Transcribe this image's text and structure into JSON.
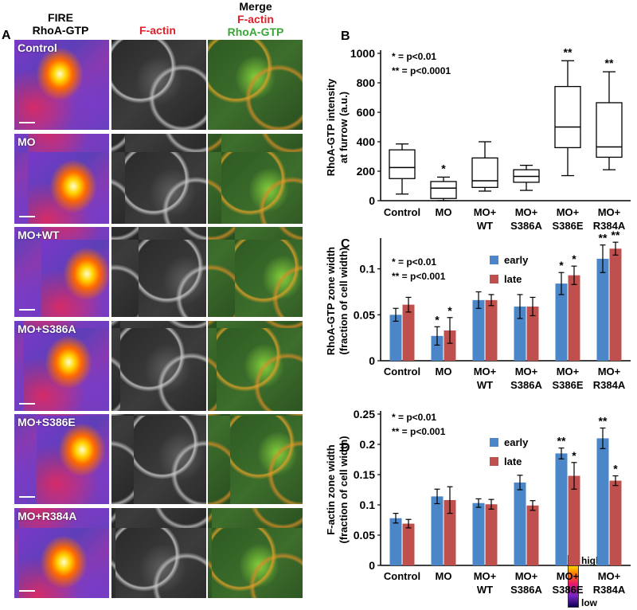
{
  "panel_a": {
    "letter": "A",
    "headers": {
      "fire_line1": "FIRE",
      "fire_line2": "RhoA-GTP",
      "factin": "F-actin",
      "merge_line1": "Merge",
      "merge_line2": "F-actin",
      "merge_line3": "RhoA-GTP"
    },
    "rows": [
      "Control",
      "MO",
      "MO+WT",
      "MO+S386A",
      "MO+S386E",
      "MO+R384A"
    ],
    "colorbar": {
      "high": "high",
      "low": "low"
    },
    "colors": {
      "factin_header": "#e0202a",
      "rhoa_header": "#3aa63a"
    }
  },
  "chart_data": [
    {
      "panel": "B",
      "type": "box",
      "ylabel_line1": "RhoA-GTP intensity",
      "ylabel_line2": "at furrow (a.u.)",
      "ylim": [
        0,
        1000
      ],
      "yticks": [
        "0",
        "200",
        "400",
        "600",
        "800",
        "1000"
      ],
      "categories": [
        {
          "line1": "Control",
          "line2": "",
          "min": 45,
          "q1": 150,
          "median": 225,
          "q3": 345,
          "max": 385,
          "sig": ""
        },
        {
          "line1": "MO",
          "line2": "",
          "min": 0,
          "q1": 15,
          "median": 85,
          "q3": 130,
          "max": 160,
          "sig": "*"
        },
        {
          "line1": "MO+",
          "line2": "WT",
          "min": 65,
          "q1": 90,
          "median": 135,
          "q3": 290,
          "max": 400,
          "sig": ""
        },
        {
          "line1": "MO+",
          "line2": "S386A",
          "min": 70,
          "q1": 125,
          "median": 165,
          "q3": 210,
          "max": 240,
          "sig": ""
        },
        {
          "line1": "MO+",
          "line2": "S386E",
          "min": 170,
          "q1": 360,
          "median": 500,
          "q3": 775,
          "max": 950,
          "sig": "**"
        },
        {
          "line1": "MO+",
          "line2": "R384A",
          "min": 210,
          "q1": 295,
          "median": 365,
          "q3": 665,
          "max": 875,
          "sig": "**"
        }
      ],
      "legend": [
        "* = p<0.01",
        "** = p<0.0001"
      ]
    },
    {
      "panel": "C",
      "type": "bar",
      "ylabel_line1": "RhoA-GTP zone width",
      "ylabel_line2": "(fraction of cell width)",
      "ylim": [
        0,
        0.13
      ],
      "yticks": [
        0,
        0.05,
        0.1
      ],
      "ytick_labels": [
        "0",
        "0.05",
        "0.1"
      ],
      "categories": [
        {
          "line1": "Control",
          "line2": ""
        },
        {
          "line1": "MO",
          "line2": ""
        },
        {
          "line1": "MO+",
          "line2": "WT"
        },
        {
          "line1": "MO+",
          "line2": "S386A"
        },
        {
          "line1": "MO+",
          "line2": "S386E"
        },
        {
          "line1": "MO+",
          "line2": "R384A"
        }
      ],
      "series": [
        {
          "name": "early",
          "color": "#4a86c8",
          "values": [
            0.05,
            0.027,
            0.066,
            0.059,
            0.084,
            0.111
          ],
          "errors": [
            0.007,
            0.01,
            0.009,
            0.013,
            0.012,
            0.015
          ],
          "sig": [
            "",
            "*",
            "",
            "",
            "*",
            "**"
          ]
        },
        {
          "name": "late",
          "color": "#c0504d",
          "values": [
            0.061,
            0.033,
            0.066,
            0.059,
            0.093,
            0.122
          ],
          "errors": [
            0.008,
            0.014,
            0.006,
            0.01,
            0.01,
            0.007
          ],
          "sig": [
            "",
            "*",
            "",
            "",
            "*",
            "**"
          ]
        }
      ],
      "legend": [
        "* = p<0.01",
        "** = p<0.001"
      ]
    },
    {
      "panel": "D",
      "type": "bar",
      "ylabel_line1": "F-actin zone width",
      "ylabel_line2": "(fraction of cell width)",
      "ylim": [
        0,
        0.25
      ],
      "yticks": [
        0,
        0.05,
        0.1,
        0.15,
        0.2,
        0.25
      ],
      "ytick_labels": [
        "0",
        "0.05",
        "0.1",
        "0.15",
        "0.2",
        "0.25"
      ],
      "categories": [
        {
          "line1": "Control",
          "line2": ""
        },
        {
          "line1": "MO",
          "line2": ""
        },
        {
          "line1": "MO+",
          "line2": "WT"
        },
        {
          "line1": "MO+",
          "line2": "S386A"
        },
        {
          "line1": "MO+",
          "line2": "S386E"
        },
        {
          "line1": "MO+",
          "line2": "R384A"
        }
      ],
      "series": [
        {
          "name": "early",
          "color": "#4a86c8",
          "values": [
            0.078,
            0.114,
            0.103,
            0.137,
            0.185,
            0.21
          ],
          "errors": [
            0.008,
            0.012,
            0.007,
            0.012,
            0.009,
            0.017
          ],
          "sig": [
            "",
            "",
            "",
            "",
            "**",
            "**"
          ]
        },
        {
          "name": "late",
          "color": "#c0504d",
          "values": [
            0.069,
            0.108,
            0.101,
            0.099,
            0.148,
            0.14
          ],
          "errors": [
            0.007,
            0.022,
            0.008,
            0.008,
            0.022,
            0.008
          ],
          "sig": [
            "",
            "",
            "",
            "",
            "*",
            "*"
          ]
        }
      ],
      "legend": [
        "* = p<0.01",
        "** = p<0.001"
      ]
    }
  ]
}
